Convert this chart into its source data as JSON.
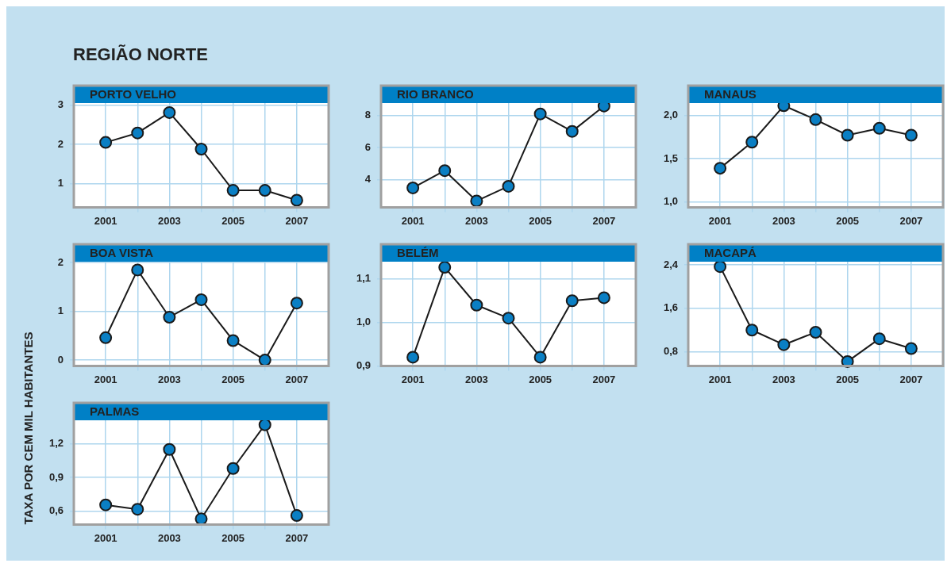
{
  "chart_data": [
    {
      "type": "other",
      "title": "REGIÃO NORTE",
      "ylabel": "TAXA POR CEM MIL HABITANTES"
    },
    {
      "type": "line",
      "title": "PORTO VELHO",
      "x": [
        2001,
        2002,
        2003,
        2004,
        2005,
        2006,
        2007
      ],
      "series": [
        {
          "color": "#0a7fc4",
          "values": [
            2.05,
            2.29,
            2.81,
            1.88,
            0.83,
            0.83,
            0.58
          ]
        }
      ],
      "xlim": [
        2000,
        2008
      ],
      "xticks": [
        2001,
        {
          "value": 2002,
          "label": null
        },
        2003,
        {
          "value": 2004,
          "label": null
        },
        2005,
        {
          "value": 2006,
          "label": null
        },
        2007
      ],
      "ylim": [
        0.4,
        3.05
      ],
      "yticks": [
        1,
        2,
        3
      ],
      "grid": true,
      "marker": "circle"
    },
    {
      "type": "line",
      "title": "RIO BRANCO",
      "x": [
        2001,
        2002,
        2003,
        2004,
        2005,
        2006,
        2007
      ],
      "series": [
        {
          "color": "#0a7fc4",
          "values": [
            3.5,
            4.57,
            2.69,
            3.6,
            8.08,
            7.0,
            8.57
          ]
        }
      ],
      "xlim": [
        2000,
        2008
      ],
      "xticks": [
        2001,
        {
          "value": 2002,
          "label": null
        },
        2003,
        {
          "value": 2004,
          "label": null
        },
        2005,
        {
          "value": 2006,
          "label": null
        },
        2007
      ],
      "ylim": [
        2.3,
        8.75
      ],
      "yticks": [
        4,
        6,
        8
      ],
      "grid": true,
      "marker": "circle"
    },
    {
      "type": "line",
      "title": "MANAUS",
      "x": [
        2001,
        2002,
        2003,
        2004,
        2005,
        2006,
        2007
      ],
      "series": [
        {
          "color": "#0a7fc4",
          "values": [
            1.39,
            1.69,
            2.11,
            1.95,
            1.77,
            1.85,
            1.77
          ]
        }
      ],
      "xlim": [
        2000,
        2008
      ],
      "xticks": [
        2001,
        {
          "value": 2002,
          "label": null
        },
        2003,
        {
          "value": 2004,
          "label": null
        },
        2005,
        {
          "value": 2006,
          "label": null
        },
        2007
      ],
      "ylim": [
        0.94,
        2.14
      ],
      "yticks": [
        {
          "value": 1.0,
          "label": "1,0"
        },
        {
          "value": 1.5,
          "label": "1,5"
        },
        {
          "value": 2.0,
          "label": "2,0"
        }
      ],
      "grid": true,
      "marker": "circle"
    },
    {
      "type": "line",
      "title": "BOA VISTA",
      "x": [
        2001,
        2002,
        2003,
        2004,
        2005,
        2006,
        2007
      ],
      "series": [
        {
          "color": "#0a7fc4",
          "values": [
            0.46,
            1.85,
            0.88,
            1.24,
            0.4,
            0.0,
            1.17
          ]
        }
      ],
      "xlim": [
        2000,
        2008
      ],
      "xticks": [
        2001,
        {
          "value": 2002,
          "label": null
        },
        2003,
        {
          "value": 2004,
          "label": null
        },
        2005,
        {
          "value": 2006,
          "label": null
        },
        2007
      ],
      "ylim": [
        -0.12,
        2.02
      ],
      "yticks": [
        0,
        1,
        2
      ],
      "grid": true,
      "marker": "circle"
    },
    {
      "type": "line",
      "title": "BELÉM",
      "x": [
        2001,
        2002,
        2003,
        2004,
        2005,
        2006,
        2007
      ],
      "series": [
        {
          "color": "#0a7fc4",
          "values": [
            0.92,
            1.127,
            1.04,
            1.01,
            0.92,
            1.05,
            1.057
          ]
        }
      ],
      "xlim": [
        2000,
        2008
      ],
      "xticks": [
        2001,
        {
          "value": 2002,
          "label": null
        },
        2003,
        {
          "value": 2004,
          "label": null
        },
        2005,
        {
          "value": 2006,
          "label": null
        },
        2007
      ],
      "ylim": [
        0.9,
        1.14
      ],
      "yticks": [
        {
          "value": 0.9,
          "label": "0,9"
        },
        {
          "value": 1.0,
          "label": "1,0"
        },
        {
          "value": 1.1,
          "label": "1,1"
        }
      ],
      "grid": true,
      "marker": "circle"
    },
    {
      "type": "line",
      "title": "MACAPÁ",
      "x": [
        2001,
        2002,
        2003,
        2004,
        2005,
        2006,
        2007
      ],
      "series": [
        {
          "color": "#0a7fc4",
          "values": [
            2.37,
            1.2,
            0.93,
            1.16,
            0.62,
            1.04,
            0.86
          ]
        }
      ],
      "xlim": [
        2000,
        2008
      ],
      "xticks": [
        2001,
        {
          "value": 2002,
          "label": null
        },
        2003,
        {
          "value": 2004,
          "label": null
        },
        2005,
        {
          "value": 2006,
          "label": null
        },
        2007
      ],
      "ylim": [
        0.54,
        2.46
      ],
      "yticks": [
        {
          "value": 0.8,
          "label": "0,8"
        },
        {
          "value": 1.6,
          "label": "1,6"
        },
        {
          "value": 2.4,
          "label": "2,4"
        }
      ],
      "grid": true,
      "marker": "circle"
    },
    {
      "type": "line",
      "title": "PALMAS",
      "x": [
        2001,
        2002,
        2003,
        2004,
        2005,
        2006,
        2007
      ],
      "series": [
        {
          "color": "#0a7fc4",
          "values": [
            0.655,
            0.616,
            1.15,
            0.53,
            0.98,
            1.37,
            0.56
          ]
        }
      ],
      "xlim": [
        2000,
        2008
      ],
      "xticks": [
        2001,
        {
          "value": 2002,
          "label": null
        },
        2003,
        {
          "value": 2004,
          "label": null
        },
        2005,
        {
          "value": 2006,
          "label": null
        },
        2007
      ],
      "ylim": [
        0.48,
        1.41
      ],
      "yticks": [
        {
          "value": 0.6,
          "label": "0,6"
        },
        {
          "value": 0.9,
          "label": "0,9"
        },
        {
          "value": 1.2,
          "label": "1,2"
        }
      ],
      "grid": true,
      "marker": "circle"
    }
  ]
}
